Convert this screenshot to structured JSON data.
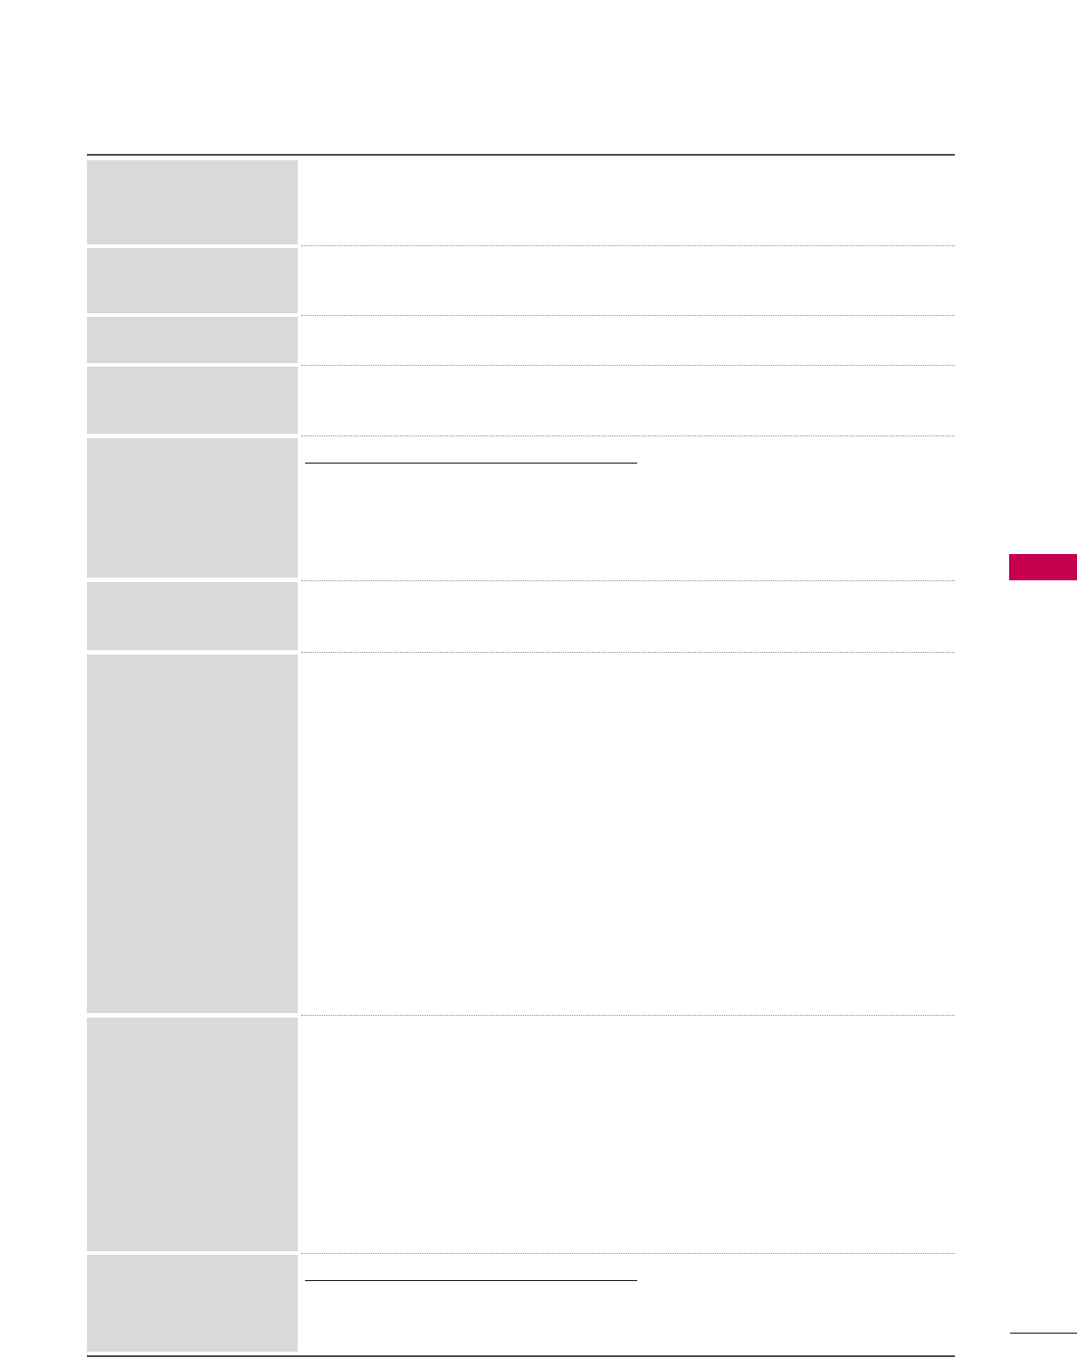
{
  "colors": {
    "accent_tab": "#c4004f",
    "label_cell": "#d9d9d9",
    "rule": "#4a4a4a"
  },
  "table": {
    "rows": 9
  }
}
